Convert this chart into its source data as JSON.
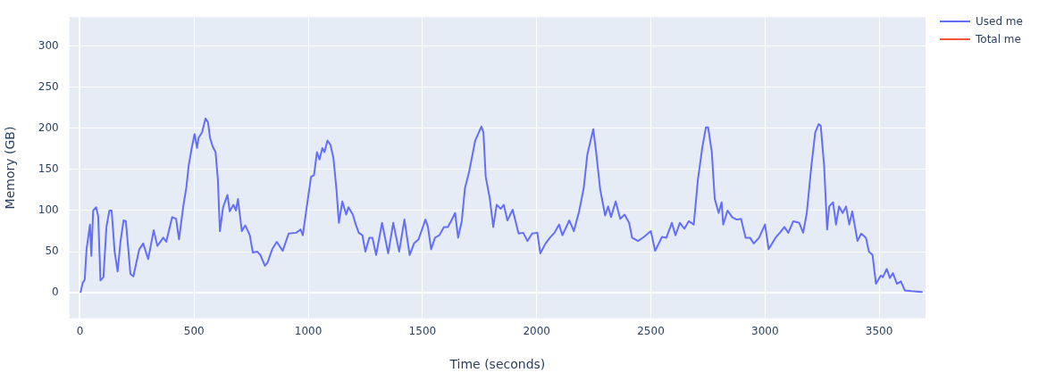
{
  "chart_data": {
    "type": "line",
    "xlabel": "Time (seconds)",
    "ylabel": "Memory (GB)",
    "xlim": [
      -46,
      3703
    ],
    "ylim": [
      -31,
      335
    ],
    "xticks": [
      0,
      500,
      1000,
      1500,
      2000,
      2500,
      3000,
      3500
    ],
    "yticks": [
      0,
      50,
      100,
      150,
      200,
      250,
      300
    ],
    "grid": true,
    "legend": "top right",
    "marker": "none",
    "line_style": "solid",
    "series": [
      {
        "name": "Used me",
        "color": "#636efa",
        "x": [
          3,
          12,
          21,
          29,
          44,
          50,
          58,
          71,
          80,
          90,
          103,
          116,
          129,
          139,
          152,
          165,
          178,
          191,
          201,
          212,
          221,
          234,
          260,
          277,
          299,
          323,
          339,
          365,
          378,
          404,
          421,
          434,
          452,
          466,
          476,
          489,
          502,
          513,
          519,
          535,
          550,
          561,
          570,
          581,
          594,
          604,
          613,
          627,
          646,
          656,
          672,
          683,
          692,
          709,
          724,
          744,
          757,
          777,
          790,
          810,
          822,
          842,
          862,
          888,
          914,
          947,
          966,
          976,
          993,
          1012,
          1025,
          1038,
          1049,
          1062,
          1071,
          1084,
          1097,
          1110,
          1123,
          1134,
          1149,
          1166,
          1176,
          1195,
          1208,
          1221,
          1237,
          1250,
          1267,
          1281,
          1297,
          1323,
          1350,
          1372,
          1398,
          1421,
          1444,
          1463,
          1483,
          1513,
          1524,
          1538,
          1555,
          1574,
          1594,
          1611,
          1627,
          1643,
          1656,
          1672,
          1686,
          1705,
          1731,
          1758,
          1767,
          1777,
          1794,
          1810,
          1825,
          1843,
          1856,
          1872,
          1895,
          1921,
          1941,
          1960,
          1980,
          2003,
          2016,
          2039,
          2058,
          2078,
          2098,
          2113,
          2143,
          2163,
          2186,
          2206,
          2222,
          2248,
          2261,
          2278,
          2300,
          2313,
          2326,
          2346,
          2366,
          2385,
          2405,
          2418,
          2444,
          2470,
          2500,
          2519,
          2549,
          2568,
          2592,
          2608,
          2627,
          2647,
          2666,
          2688,
          2706,
          2725,
          2741,
          2751,
          2767,
          2780,
          2797,
          2810,
          2817,
          2836,
          2856,
          2876,
          2895,
          2915,
          2934,
          2951,
          2974,
          3000,
          3016,
          3046,
          3065,
          3085,
          3102,
          3124,
          3150,
          3167,
          3183,
          3203,
          3220,
          3235,
          3244,
          3259,
          3272,
          3281,
          3298,
          3311,
          3324,
          3340,
          3355,
          3369,
          3382,
          3405,
          3421,
          3442,
          3455,
          3471,
          3486,
          3507,
          3516,
          3533,
          3547,
          3560,
          3578,
          3595,
          3612,
          3641,
          3687
        ],
        "values": [
          1,
          12,
          16,
          53,
          83,
          45,
          100,
          104,
          93,
          15,
          19,
          80,
          100,
          100,
          50,
          26,
          63,
          88,
          87,
          53,
          23,
          20,
          53,
          60,
          41,
          76,
          57,
          67,
          62,
          92,
          90,
          65,
          104,
          128,
          154,
          175,
          193,
          176,
          188,
          195,
          212,
          207,
          188,
          178,
          171,
          138,
          75,
          104,
          119,
          99,
          107,
          100,
          114,
          75,
          82,
          70,
          49,
          50,
          46,
          33,
          37,
          53,
          62,
          51,
          72,
          73,
          77,
          70,
          104,
          141,
          143,
          171,
          162,
          176,
          171,
          185,
          180,
          164,
          127,
          85,
          111,
          95,
          104,
          95,
          83,
          73,
          70,
          50,
          67,
          67,
          46,
          85,
          48,
          85,
          50,
          89,
          46,
          60,
          65,
          89,
          80,
          53,
          67,
          70,
          80,
          80,
          88,
          97,
          67,
          87,
          127,
          148,
          185,
          202,
          195,
          141,
          116,
          80,
          107,
          102,
          107,
          88,
          101,
          72,
          73,
          63,
          72,
          73,
          48,
          60,
          67,
          73,
          83,
          70,
          88,
          75,
          99,
          127,
          168,
          199,
          170,
          126,
          94,
          105,
          92,
          111,
          90,
          95,
          85,
          67,
          63,
          68,
          75,
          51,
          68,
          67,
          85,
          70,
          85,
          78,
          87,
          83,
          137,
          176,
          201,
          201,
          171,
          114,
          97,
          110,
          83,
          100,
          92,
          89,
          90,
          67,
          67,
          60,
          67,
          83,
          53,
          67,
          73,
          80,
          73,
          87,
          85,
          73,
          97,
          154,
          195,
          205,
          203,
          154,
          77,
          105,
          110,
          83,
          105,
          97,
          105,
          83,
          99,
          63,
          72,
          67,
          50,
          46,
          11,
          21,
          19,
          29,
          18,
          24,
          11,
          14,
          3,
          2,
          1
        ]
      },
      {
        "name": "Total me",
        "color": "#ef553b"
      }
    ]
  }
}
